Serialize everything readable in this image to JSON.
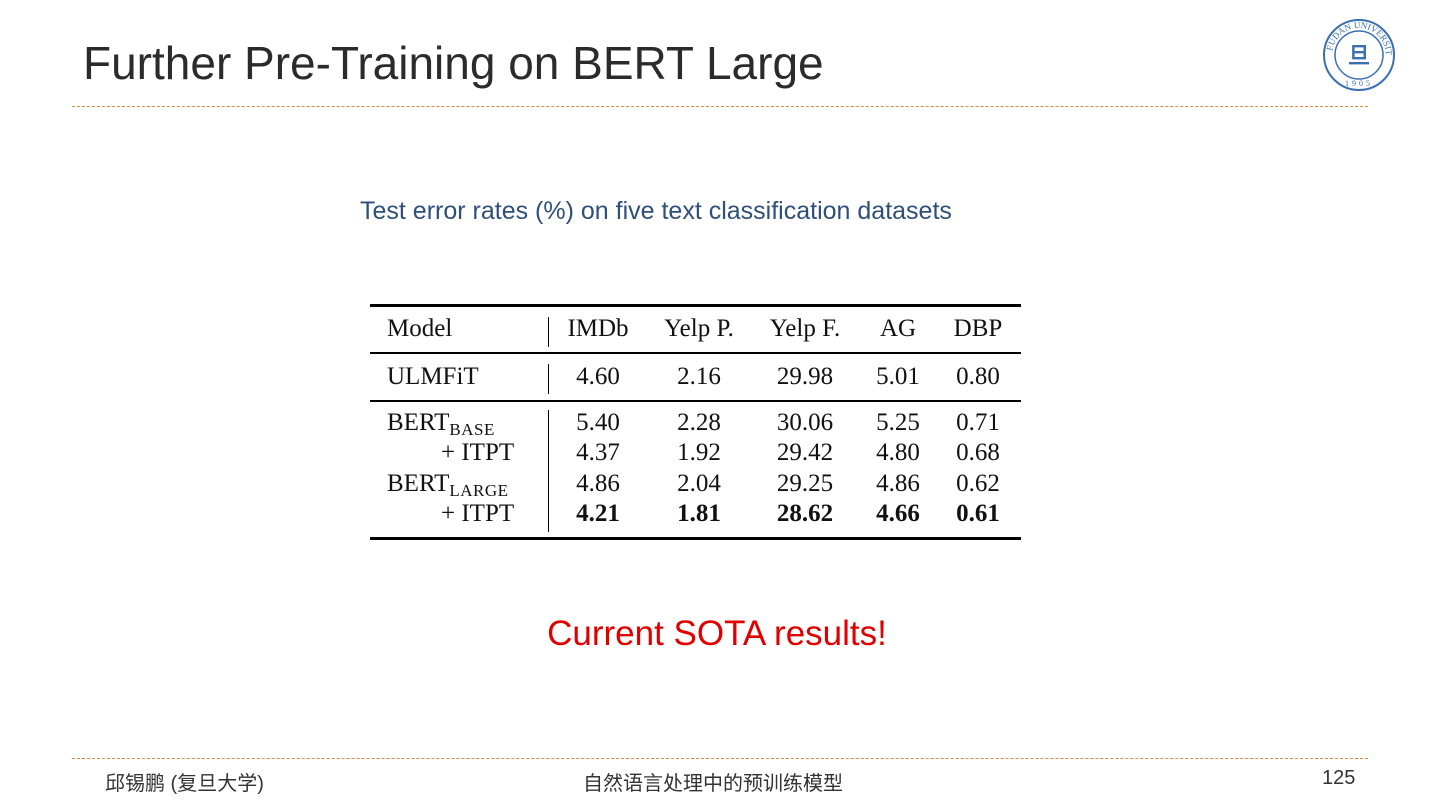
{
  "slide": {
    "title": "Further Pre-Training on BERT Large",
    "subtitle": "Test error rates (%) on five text classification datasets",
    "highlight": "Current SOTA results!",
    "logo_text": "FUDAN UNIVERSITY 1905",
    "accent_color": "#d98a4a",
    "highlight_color": "#e00000"
  },
  "table": {
    "headers": [
      "Model",
      "IMDb",
      "Yelp P.",
      "Yelp F.",
      "AG",
      "DBP"
    ],
    "rows": [
      {
        "model": "ULMFiT",
        "sub": "",
        "values": [
          "4.60",
          "2.16",
          "29.98",
          "5.01",
          "0.80"
        ],
        "bold": false
      },
      {
        "model": "BERT",
        "sub": "BASE",
        "values": [
          "5.40",
          "2.28",
          "30.06",
          "5.25",
          "0.71"
        ],
        "bold": false
      },
      {
        "model": "+ ITPT",
        "sub": "",
        "values": [
          "4.37",
          "1.92",
          "29.42",
          "4.80",
          "0.68"
        ],
        "bold": false
      },
      {
        "model": "BERT",
        "sub": "LARGE",
        "values": [
          "4.86",
          "2.04",
          "29.25",
          "4.86",
          "0.62"
        ],
        "bold": false
      },
      {
        "model": "+ ITPT",
        "sub": "",
        "values": [
          "4.21",
          "1.81",
          "28.62",
          "4.66",
          "0.61"
        ],
        "bold": true
      }
    ]
  },
  "footer": {
    "author": "邱锡鹏 (复旦大学)",
    "course": "自然语言处理中的预训练模型",
    "page": "125"
  }
}
